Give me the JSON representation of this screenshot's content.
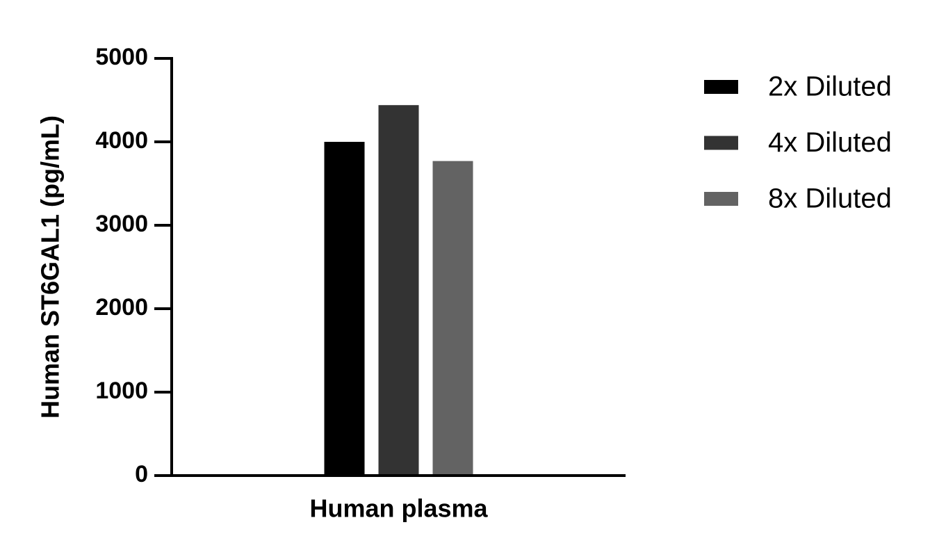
{
  "chart_data": {
    "type": "bar",
    "y_label": "Human ST6GAL1 (pg/mL)",
    "categories": [
      "Human plasma"
    ],
    "series": [
      {
        "name": "2x Diluted",
        "color": "#000000",
        "values": [
          4000
        ]
      },
      {
        "name": "4x Diluted",
        "color": "#333333",
        "values": [
          4440
        ]
      },
      {
        "name": "8x Diluted",
        "color": "#636363",
        "values": [
          3770
        ]
      }
    ],
    "ylim": [
      0,
      5000
    ],
    "yticks": [
      0,
      1000,
      2000,
      3000,
      4000,
      5000
    ],
    "grid": false,
    "legend": "right"
  }
}
